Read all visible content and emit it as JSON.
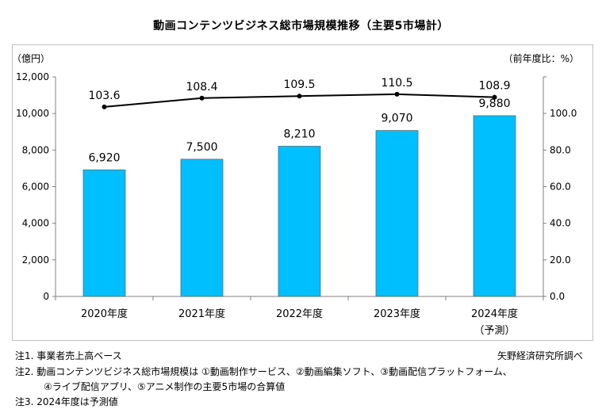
{
  "title": "動画コンテンツビジネス総市場規模推移（主要5市場計）",
  "chart_data": {
    "type": "bar",
    "categories": [
      "2020年度",
      "2021年度",
      "2022年度",
      "2023年度",
      "2024年度"
    ],
    "category_sublabels": [
      "",
      "",
      "",
      "",
      "（予測）"
    ],
    "series": [
      {
        "values": [
          6920,
          7500,
          8210,
          9070,
          9880
        ],
        "value_labels": [
          "6,920",
          "7,500",
          "8,210",
          "9,070",
          "9,880"
        ],
        "color": "#00bfff",
        "axis": "left",
        "kind": "bar"
      },
      {
        "values": [
          103.6,
          108.4,
          109.5,
          110.5,
          108.9
        ],
        "value_labels": [
          "103.6",
          "108.4",
          "109.5",
          "110.5",
          "108.9"
        ],
        "color": "#000000",
        "axis": "right",
        "kind": "line"
      }
    ],
    "left_axis": {
      "label": "（億円）",
      "ylim": [
        0,
        12000
      ],
      "ticks": [
        "0",
        "2,000",
        "4,000",
        "6,000",
        "8,000",
        "10,000",
        "12,000"
      ]
    },
    "right_axis": {
      "label": "（前年度比：%）",
      "ylim": [
        0,
        120
      ],
      "ticks": [
        "0.0",
        "20.0",
        "40.0",
        "60.0",
        "80.0",
        "100.0"
      ]
    },
    "grid": false,
    "legend": "none"
  },
  "notes": {
    "note1": "注1.  事業者売上高ベース",
    "source": "矢野経済研究所調べ",
    "note2_line1": "注2.  動画コンテンツビジネス総市場規模は ①動画制作サービス、②動画編集ソフト、③動画配信プラットフォーム、",
    "note2_line2": "④ライブ配信アプリ、⑤アニメ制作の主要5市場の合算値",
    "note3": "注3.  2024年度は予測値"
  }
}
